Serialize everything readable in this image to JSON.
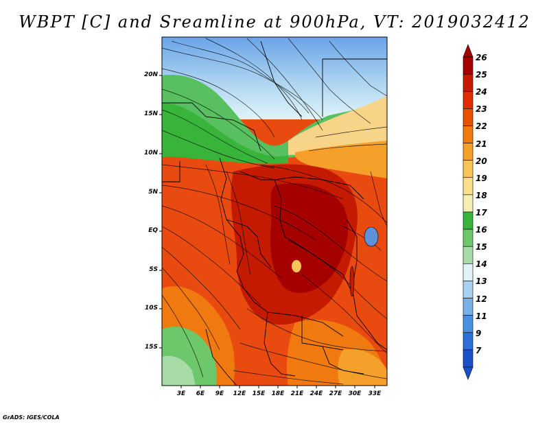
{
  "title": "WBPT [C] and Sreamline at 900hPa, VT: 2019032412",
  "credit": "GrADS: IGES/COLA",
  "lat_ticks": [
    "20N",
    "15N",
    "10N",
    "5N",
    "EQ",
    "5S",
    "10S",
    "15S"
  ],
  "lon_ticks": [
    "3E",
    "6E",
    "9E",
    "12E",
    "15E",
    "18E",
    "21E",
    "24E",
    "27E",
    "30E",
    "33E"
  ],
  "colorbar": {
    "labels": [
      "26",
      "25",
      "24",
      "23",
      "22",
      "21",
      "20",
      "19",
      "18",
      "17",
      "16",
      "15",
      "14",
      "13",
      "12",
      "11",
      "9",
      "7"
    ],
    "colors": [
      "#a50000",
      "#c41a00",
      "#dc2e00",
      "#e85200",
      "#f07a10",
      "#f5a02a",
      "#f8c458",
      "#fbe08c",
      "#f4f0b4",
      "#38b43a",
      "#6cc86a",
      "#a8dca6",
      "#e0f4f8",
      "#a8d0f0",
      "#78b0e8",
      "#4a90e0",
      "#2c70d8",
      "#1a50c8"
    ]
  }
}
